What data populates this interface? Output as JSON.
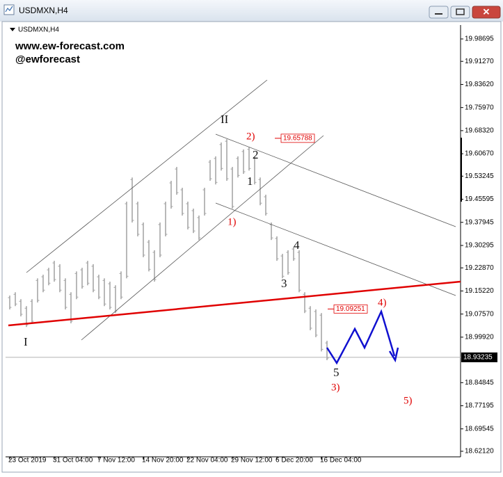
{
  "window_title": "USDMXN,H4",
  "chart_data": {
    "type": "hilo",
    "title": "USDMXN,H4",
    "annotations": [
      "www.ew-forecast.com",
      "@ewforecast"
    ],
    "wave_labels": [
      "I",
      "II",
      "1",
      "2",
      "3",
      "4",
      "5"
    ],
    "wave_labels_minor": [
      "1)",
      "2)",
      "3)",
      "4)",
      "5)"
    ],
    "price_labels": [
      19.65788,
      19.09251
    ],
    "current_price": 18.93235,
    "color": "#a0a0a0",
    "high": [
      19.137,
      19.148,
      19.125,
      19.102,
      19.125,
      19.194,
      19.206,
      19.229,
      19.252,
      19.241,
      19.194,
      19.148,
      19.217,
      19.229,
      19.252,
      19.241,
      19.206,
      19.194,
      19.183,
      19.171,
      19.217,
      19.448,
      19.528,
      19.448,
      19.379,
      19.321,
      19.287,
      19.379,
      19.448,
      19.517,
      19.563,
      19.494,
      19.448,
      19.425,
      19.402,
      19.494,
      19.586,
      19.598,
      19.644,
      19.655,
      19.563,
      19.598,
      19.621,
      19.628,
      19.598,
      19.528,
      19.471,
      19.379,
      19.333,
      19.275,
      19.287,
      19.298,
      19.287,
      19.148,
      19.102,
      19.091,
      19.079,
      18.987
    ],
    "low": [
      19.091,
      19.102,
      19.068,
      19.033,
      19.045,
      19.114,
      19.148,
      19.171,
      19.183,
      19.148,
      19.091,
      19.045,
      19.125,
      19.16,
      19.171,
      19.148,
      19.125,
      19.102,
      19.091,
      19.079,
      19.125,
      19.194,
      19.379,
      19.333,
      19.264,
      19.217,
      19.183,
      19.264,
      19.333,
      19.425,
      19.471,
      19.402,
      19.356,
      19.344,
      19.321,
      19.402,
      19.517,
      19.505,
      19.551,
      19.517,
      19.425,
      19.528,
      19.54,
      19.551,
      19.505,
      19.436,
      19.402,
      19.321,
      19.252,
      19.194,
      19.206,
      19.252,
      19.148,
      19.079,
      19.022,
      18.999,
      18.952,
      18.923
    ],
    "xlim": [
      -0.25,
      81
    ],
    "xticks": [
      {
        "value": 0,
        "label": "23 Oct 2019"
      },
      {
        "value": 8,
        "label": "31 Oct 04:00"
      },
      {
        "value": 16,
        "label": "7 Nov 12:00"
      },
      {
        "value": 24,
        "label": "14 Nov 20:00"
      },
      {
        "value": 32,
        "label": "22 Nov 04:00"
      },
      {
        "value": 40,
        "label": "29 Nov 12:00"
      },
      {
        "value": 48,
        "label": "6 Dec 20:00"
      },
      {
        "value": 56,
        "label": "16 Dec 04:00"
      }
    ],
    "ylim": [
      18.6028,
      20.033
    ],
    "yticks": [
      {
        "value": 19.98695,
        "label": "19.98695"
      },
      {
        "value": 19.9127,
        "label": "19.91270"
      },
      {
        "value": 19.8362,
        "label": "19.83620"
      },
      {
        "value": 19.7597,
        "label": "19.75970"
      },
      {
        "value": 19.6832,
        "label": "19.68320"
      },
      {
        "value": 19.6067,
        "label": "19.60670"
      },
      {
        "value": 19.53245,
        "label": "19.53245"
      },
      {
        "value": 19.45595,
        "label": "19.45595"
      },
      {
        "value": 19.37945,
        "label": "19.37945"
      },
      {
        "value": 19.30295,
        "label": "19.30295"
      },
      {
        "value": 19.2287,
        "label": "19.22870"
      },
      {
        "value": 19.1522,
        "label": "19.15220"
      },
      {
        "value": 19.0757,
        "label": "19.07570"
      },
      {
        "value": 18.9992,
        "label": "18.99920"
      },
      {
        "value": 18.84845,
        "label": "18.84845"
      },
      {
        "value": 18.77195,
        "label": "18.77195"
      },
      {
        "value": 18.69545,
        "label": "18.69545"
      },
      {
        "value": 18.6212,
        "label": "18.62120"
      }
    ]
  }
}
